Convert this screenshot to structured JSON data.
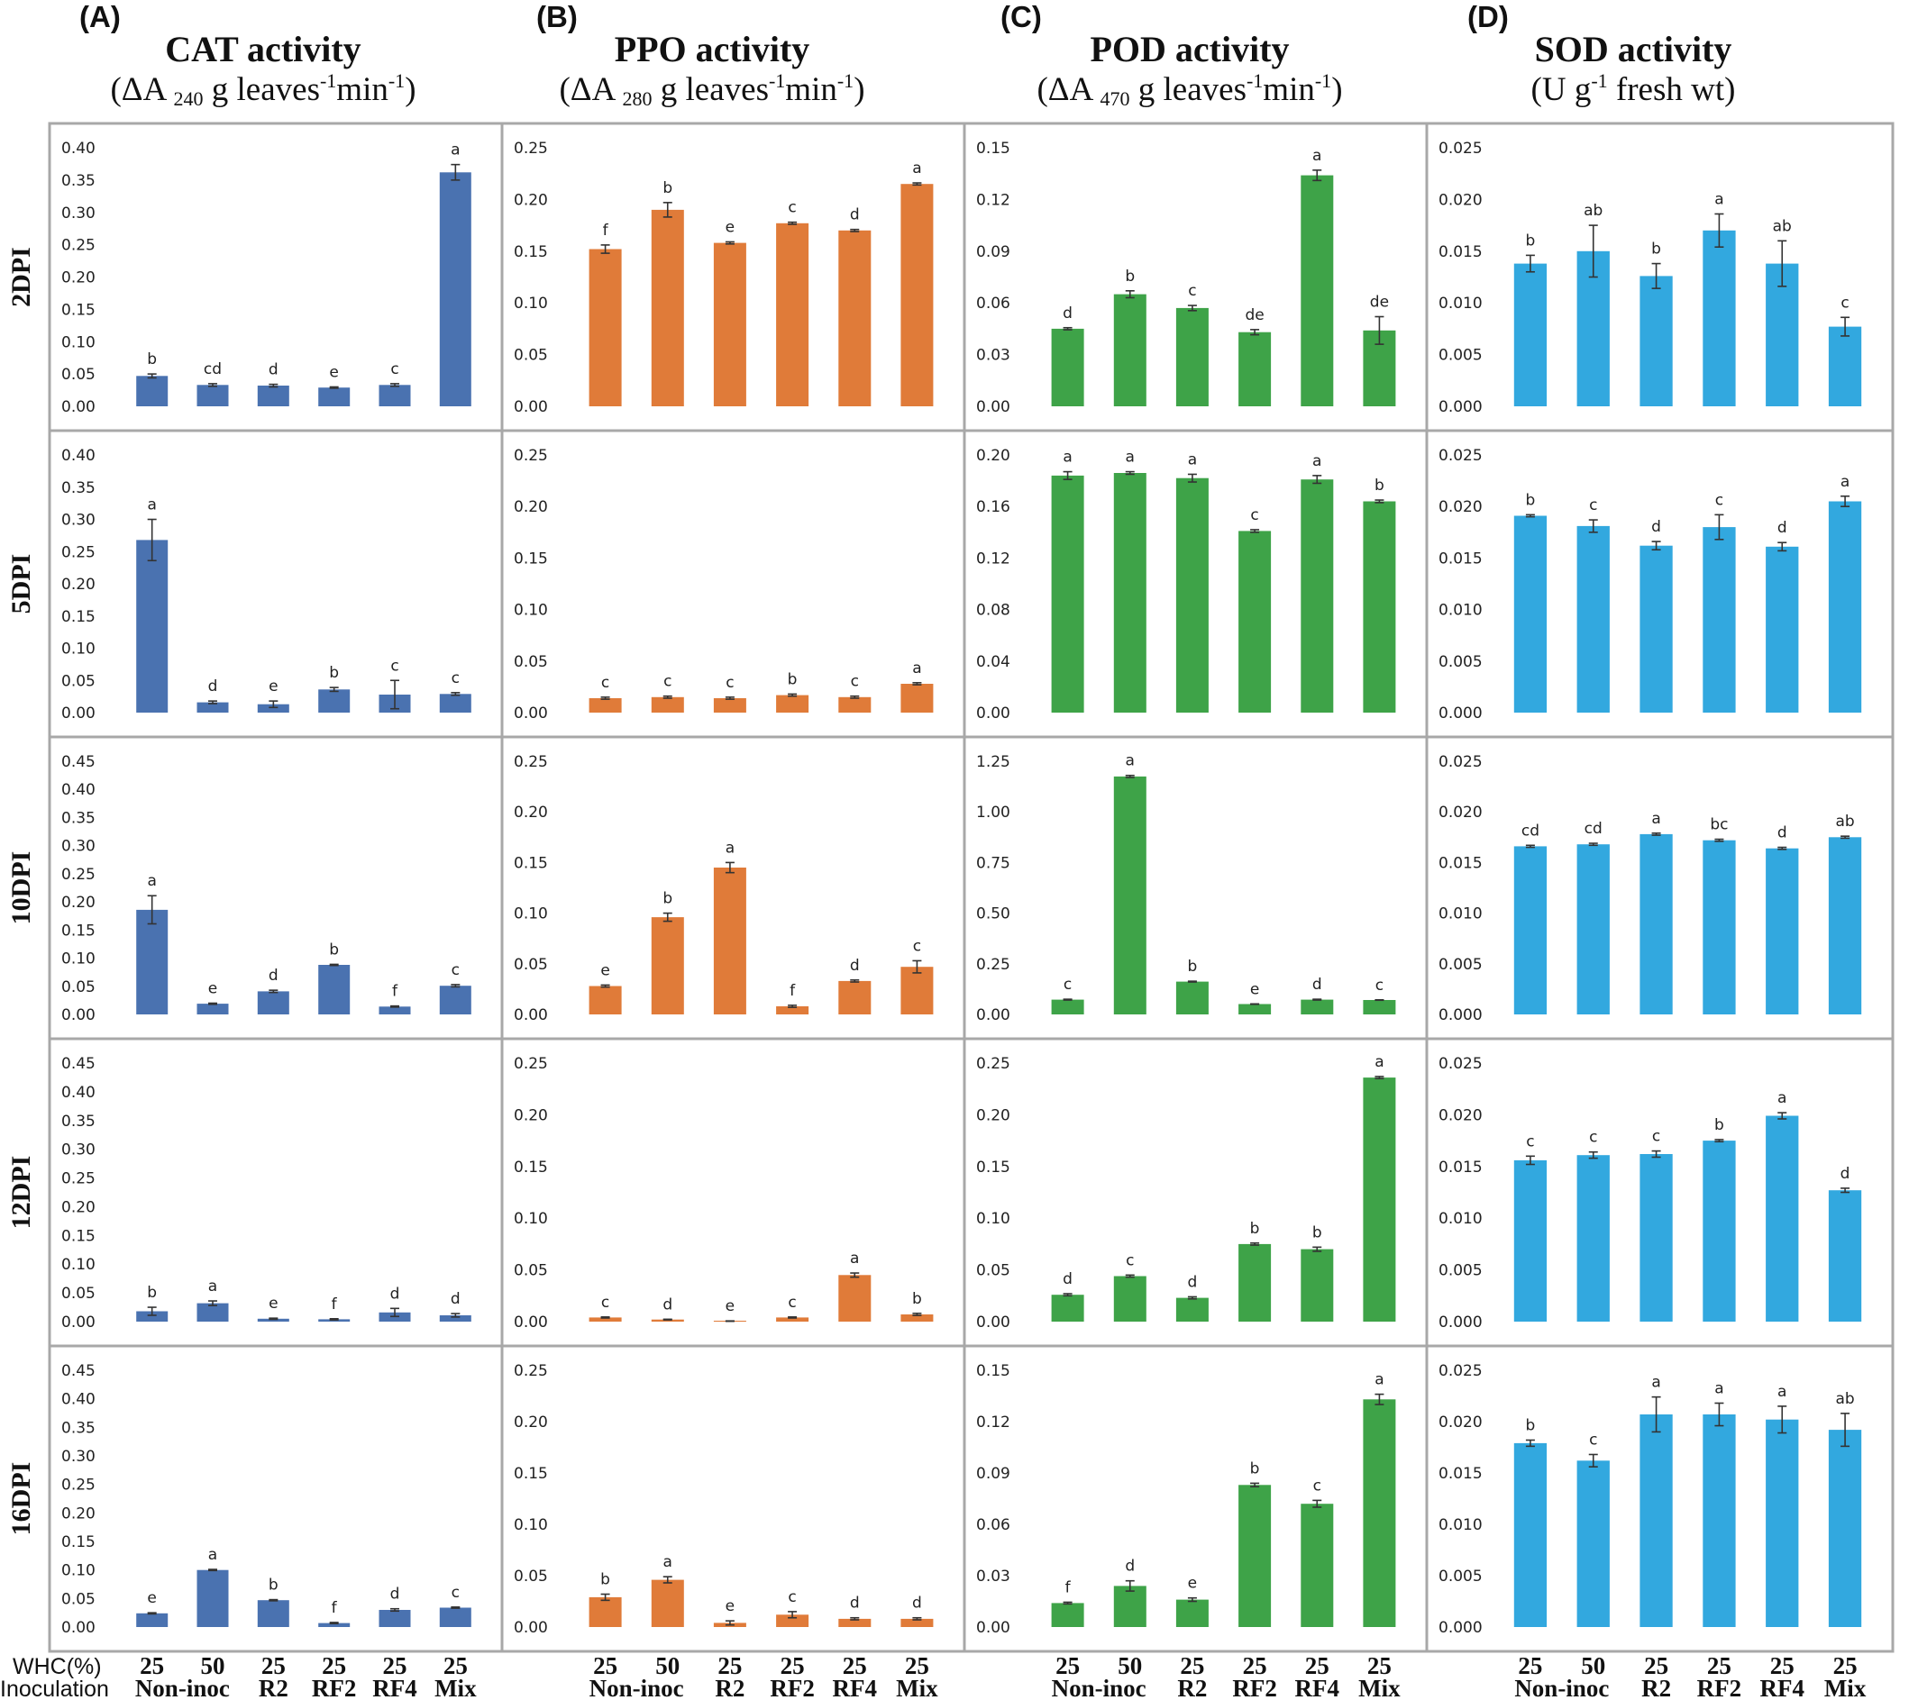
{
  "columns": [
    {
      "letter": "(A)",
      "title": "CAT activity",
      "unit": {
        "pre": "(ΔA ",
        "sub": "240",
        "mid": " g leaves",
        "sup1": "-1",
        "mid2": "min",
        "sup2": "-1",
        "post": ")"
      },
      "color": "#4a72b0"
    },
    {
      "letter": "(B)",
      "title": "PPO activity",
      "unit": {
        "pre": "(ΔA ",
        "sub": "280",
        "mid": " g leaves",
        "sup1": "-1",
        "mid2": "min",
        "sup2": "-1",
        "post": ")"
      },
      "color": "#e07b39"
    },
    {
      "letter": "(C)",
      "title": "POD activity",
      "unit": {
        "pre": "(ΔA ",
        "sub": "470",
        "mid": " g leaves",
        "sup1": "-1",
        "mid2": "min",
        "sup2": "-1",
        "post": ")"
      },
      "color": "#3ea348"
    },
    {
      "letter": "(D)",
      "title": "SOD activity",
      "unit": {
        "pre": "(U g",
        "sub": "",
        "mid": "",
        "sup1": "-1",
        "mid2": " fresh wt",
        "sup2": "",
        "post": ")"
      },
      "color": "#32a8df"
    }
  ],
  "rows": [
    "2DPI",
    "5DPI",
    "10DPI",
    "12DPI",
    "16DPI"
  ],
  "x_header": {
    "whc": "WHC(%)",
    "inoculation": "Inoculation"
  },
  "groups": [
    {
      "whc": "25",
      "inoc": "Non-inoc"
    },
    {
      "whc": "50",
      "inoc": ""
    },
    {
      "whc": "25",
      "inoc": "R2"
    },
    {
      "whc": "25",
      "inoc": "RF2"
    },
    {
      "whc": "25",
      "inoc": "RF4"
    },
    {
      "whc": "25",
      "inoc": "Mix"
    }
  ],
  "chart_data": [
    {
      "type": "bar",
      "row": "2DPI",
      "column": "CAT",
      "ylim": [
        0,
        0.4
      ],
      "ticks": [
        "0.00",
        "0.05",
        "0.10",
        "0.15",
        "0.20",
        "0.25",
        "0.30",
        "0.35",
        "0.40"
      ],
      "values": [
        0.047,
        0.033,
        0.032,
        0.029,
        0.033,
        0.362
      ],
      "errors": [
        0.003,
        0.002,
        0.002,
        0.001,
        0.002,
        0.012
      ],
      "letters": [
        "b",
        "cd",
        "d",
        "e",
        "c",
        "a"
      ]
    },
    {
      "type": "bar",
      "row": "2DPI",
      "column": "PPO",
      "ylim": [
        0,
        0.25
      ],
      "ticks": [
        "0.00",
        "0.05",
        "0.10",
        "0.15",
        "0.20",
        "0.25"
      ],
      "values": [
        0.152,
        0.19,
        0.158,
        0.177,
        0.17,
        0.215
      ],
      "errors": [
        0.004,
        0.007,
        0.001,
        0.001,
        0.001,
        0.001
      ],
      "letters": [
        "f",
        "b",
        "e",
        "c",
        "d",
        "a"
      ]
    },
    {
      "type": "bar",
      "row": "2DPI",
      "column": "POD",
      "ylim": [
        0,
        0.15
      ],
      "ticks": [
        "0.00",
        "0.03",
        "0.06",
        "0.09",
        "0.12",
        "0.15"
      ],
      "values": [
        0.045,
        0.065,
        0.057,
        0.043,
        0.134,
        0.044
      ],
      "errors": [
        0.0006,
        0.002,
        0.0015,
        0.0015,
        0.003,
        0.008
      ],
      "letters": [
        "d",
        "b",
        "c",
        "de",
        "a",
        "de"
      ]
    },
    {
      "type": "bar",
      "row": "2DPI",
      "column": "SOD",
      "ylim": [
        0,
        0.025
      ],
      "ticks": [
        "0.000",
        "0.005",
        "0.010",
        "0.015",
        "0.020",
        "0.025"
      ],
      "values": [
        0.0138,
        0.015,
        0.0126,
        0.017,
        0.0138,
        0.0077
      ],
      "errors": [
        0.0008,
        0.0025,
        0.0012,
        0.0016,
        0.0022,
        0.0009
      ],
      "letters": [
        "b",
        "ab",
        "b",
        "a",
        "ab",
        "c"
      ]
    },
    {
      "type": "bar",
      "row": "5DPI",
      "column": "CAT",
      "ylim": [
        0,
        0.4
      ],
      "ticks": [
        "0.00",
        "0.05",
        "0.10",
        "0.15",
        "0.20",
        "0.25",
        "0.30",
        "0.35",
        "0.40"
      ],
      "values": [
        0.268,
        0.016,
        0.013,
        0.036,
        0.028,
        0.029
      ],
      "errors": [
        0.032,
        0.002,
        0.005,
        0.003,
        0.022,
        0.002
      ],
      "letters": [
        "a",
        "d",
        "e",
        "b",
        "c",
        "c"
      ]
    },
    {
      "type": "bar",
      "row": "5DPI",
      "column": "PPO",
      "ylim": [
        0,
        0.25
      ],
      "ticks": [
        "0.00",
        "0.05",
        "0.10",
        "0.15",
        "0.20",
        "0.25"
      ],
      "values": [
        0.014,
        0.015,
        0.014,
        0.017,
        0.015,
        0.028
      ],
      "errors": [
        0.001,
        0.001,
        0.001,
        0.001,
        0.001,
        0.001
      ],
      "letters": [
        "c",
        "c",
        "c",
        "b",
        "c",
        "a"
      ]
    },
    {
      "type": "bar",
      "row": "5DPI",
      "column": "POD",
      "ylim": [
        0,
        0.2
      ],
      "ticks": [
        "0.00",
        "0.04",
        "0.08",
        "0.12",
        "0.16",
        "0.20"
      ],
      "values": [
        0.184,
        0.186,
        0.182,
        0.141,
        0.181,
        0.164
      ],
      "errors": [
        0.003,
        0.001,
        0.003,
        0.001,
        0.003,
        0.001
      ],
      "letters": [
        "a",
        "a",
        "a",
        "c",
        "a",
        "b"
      ]
    },
    {
      "type": "bar",
      "row": "5DPI",
      "column": "SOD",
      "ylim": [
        0,
        0.025
      ],
      "ticks": [
        "0.000",
        "0.005",
        "0.010",
        "0.015",
        "0.020",
        "0.025"
      ],
      "values": [
        0.0191,
        0.0181,
        0.0162,
        0.018,
        0.0161,
        0.0205
      ],
      "errors": [
        0.0001,
        0.0006,
        0.0004,
        0.0012,
        0.0004,
        0.0005
      ],
      "letters": [
        "b",
        "c",
        "d",
        "c",
        "d",
        "a"
      ]
    },
    {
      "type": "bar",
      "row": "10DPI",
      "column": "CAT",
      "ylim": [
        0,
        0.45
      ],
      "ticks": [
        "0.00",
        "0.05",
        "0.10",
        "0.15",
        "0.20",
        "0.25",
        "0.30",
        "0.35",
        "0.40",
        "0.45"
      ],
      "values": [
        0.186,
        0.019,
        0.041,
        0.088,
        0.014,
        0.051
      ],
      "errors": [
        0.025,
        0.001,
        0.002,
        0.001,
        0.001,
        0.002
      ],
      "letters": [
        "a",
        "e",
        "d",
        "b",
        "f",
        "c"
      ]
    },
    {
      "type": "bar",
      "row": "10DPI",
      "column": "PPO",
      "ylim": [
        0,
        0.25
      ],
      "ticks": [
        "0.00",
        "0.05",
        "0.10",
        "0.15",
        "0.20",
        "0.25"
      ],
      "values": [
        0.028,
        0.096,
        0.145,
        0.008,
        0.033,
        0.047
      ],
      "errors": [
        0.001,
        0.004,
        0.005,
        0.001,
        0.001,
        0.006
      ],
      "letters": [
        "e",
        "b",
        "a",
        "f",
        "d",
        "c"
      ]
    },
    {
      "type": "bar",
      "row": "10DPI",
      "column": "POD",
      "ylim": [
        0,
        1.25
      ],
      "ticks": [
        "0.00",
        "0.25",
        "0.50",
        "0.75",
        "1.00",
        "1.25"
      ],
      "values": [
        0.073,
        1.175,
        0.162,
        0.051,
        0.073,
        0.071
      ],
      "errors": [
        0.002,
        0.005,
        0.002,
        0.001,
        0.002,
        0.001
      ],
      "letters": [
        "c",
        "a",
        "b",
        "e",
        "d",
        "c"
      ]
    },
    {
      "type": "bar",
      "row": "10DPI",
      "column": "SOD",
      "ylim": [
        0,
        0.025
      ],
      "ticks": [
        "0.000",
        "0.005",
        "0.010",
        "0.015",
        "0.020",
        "0.025"
      ],
      "values": [
        0.0166,
        0.0168,
        0.0178,
        0.0172,
        0.0164,
        0.0175
      ],
      "errors": [
        0.0001,
        0.0001,
        0.0001,
        0.0001,
        0.0001,
        0.0001
      ],
      "letters": [
        "cd",
        "cd",
        "a",
        "bc",
        "d",
        "ab"
      ]
    },
    {
      "type": "bar",
      "row": "12DPI",
      "column": "CAT",
      "ylim": [
        0,
        0.45
      ],
      "ticks": [
        "0.00",
        "0.05",
        "0.10",
        "0.15",
        "0.20",
        "0.25",
        "0.30",
        "0.35",
        "0.40",
        "0.45"
      ],
      "values": [
        0.018,
        0.032,
        0.005,
        0.004,
        0.016,
        0.011
      ],
      "errors": [
        0.007,
        0.004,
        0.001,
        0.001,
        0.007,
        0.003
      ],
      "letters": [
        "b",
        "a",
        "e",
        "f",
        "d",
        "d"
      ]
    },
    {
      "type": "bar",
      "row": "12DPI",
      "column": "PPO",
      "ylim": [
        0,
        0.25
      ],
      "ticks": [
        "0.00",
        "0.05",
        "0.10",
        "0.15",
        "0.20",
        "0.25"
      ],
      "values": [
        0.004,
        0.002,
        0.0005,
        0.004,
        0.045,
        0.007
      ],
      "errors": [
        0.0005,
        0.0003,
        0.0002,
        0.0005,
        0.002,
        0.001
      ],
      "letters": [
        "c",
        "d",
        "e",
        "c",
        "a",
        "b"
      ]
    },
    {
      "type": "bar",
      "row": "12DPI",
      "column": "POD",
      "ylim": [
        0,
        0.25
      ],
      "ticks": [
        "0.00",
        "0.05",
        "0.10",
        "0.15",
        "0.20",
        "0.25"
      ],
      "values": [
        0.026,
        0.044,
        0.023,
        0.075,
        0.07,
        0.236
      ],
      "errors": [
        0.001,
        0.001,
        0.001,
        0.001,
        0.002,
        0.001
      ],
      "letters": [
        "d",
        "c",
        "d",
        "b",
        "b",
        "a"
      ]
    },
    {
      "type": "bar",
      "row": "12DPI",
      "column": "SOD",
      "ylim": [
        0,
        0.025
      ],
      "ticks": [
        "0.000",
        "0.005",
        "0.010",
        "0.015",
        "0.020",
        "0.025"
      ],
      "values": [
        0.0156,
        0.0161,
        0.0162,
        0.0175,
        0.0199,
        0.0127
      ],
      "errors": [
        0.0004,
        0.0003,
        0.0003,
        0.0001,
        0.0003,
        0.0002
      ],
      "letters": [
        "c",
        "c",
        "c",
        "b",
        "a",
        "d"
      ]
    },
    {
      "type": "bar",
      "row": "16DPI",
      "column": "CAT",
      "ylim": [
        0,
        0.45
      ],
      "ticks": [
        "0.00",
        "0.05",
        "0.10",
        "0.15",
        "0.20",
        "0.25",
        "0.30",
        "0.35",
        "0.40",
        "0.45"
      ],
      "values": [
        0.024,
        0.1,
        0.047,
        0.007,
        0.03,
        0.034
      ],
      "errors": [
        0.001,
        0.001,
        0.001,
        0.001,
        0.002,
        0.001
      ],
      "letters": [
        "e",
        "a",
        "b",
        "f",
        "d",
        "c"
      ]
    },
    {
      "type": "bar",
      "row": "16DPI",
      "column": "PPO",
      "ylim": [
        0,
        0.25
      ],
      "ticks": [
        "0.00",
        "0.05",
        "0.10",
        "0.15",
        "0.20",
        "0.25"
      ],
      "values": [
        0.029,
        0.046,
        0.004,
        0.012,
        0.008,
        0.008
      ],
      "errors": [
        0.003,
        0.003,
        0.002,
        0.003,
        0.001,
        0.001
      ],
      "letters": [
        "b",
        "a",
        "e",
        "c",
        "d",
        "d"
      ]
    },
    {
      "type": "bar",
      "row": "16DPI",
      "column": "POD",
      "ylim": [
        0,
        0.15
      ],
      "ticks": [
        "0.00",
        "0.03",
        "0.06",
        "0.09",
        "0.12",
        "0.15"
      ],
      "values": [
        0.014,
        0.024,
        0.016,
        0.083,
        0.072,
        0.133
      ],
      "errors": [
        0.0005,
        0.003,
        0.001,
        0.001,
        0.002,
        0.003
      ],
      "letters": [
        "f",
        "d",
        "e",
        "b",
        "c",
        "a"
      ]
    },
    {
      "type": "bar",
      "row": "16DPI",
      "column": "SOD",
      "ylim": [
        0,
        0.025
      ],
      "ticks": [
        "0.000",
        "0.005",
        "0.010",
        "0.015",
        "0.020",
        "0.025"
      ],
      "values": [
        0.0179,
        0.0162,
        0.0207,
        0.0207,
        0.0202,
        0.0192
      ],
      "errors": [
        0.0003,
        0.0006,
        0.0017,
        0.0011,
        0.0013,
        0.0016
      ],
      "letters": [
        "b",
        "c",
        "a",
        "a",
        "a",
        "ab"
      ]
    }
  ]
}
